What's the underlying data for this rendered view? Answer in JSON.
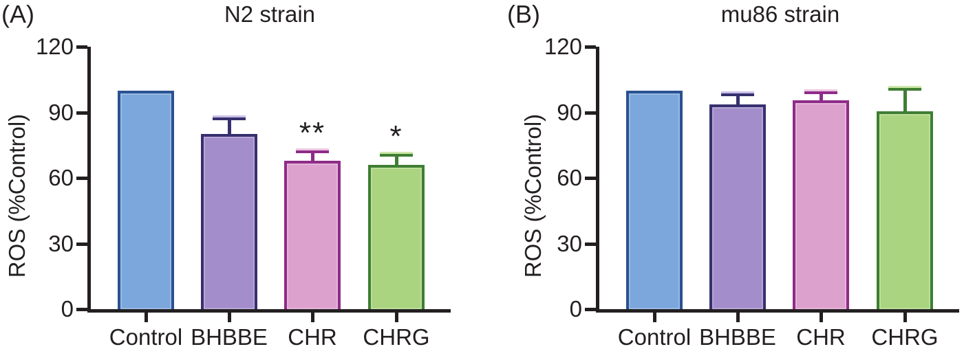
{
  "figure": {
    "background": "#ffffff",
    "text_color": "#231f20",
    "axis_color": "#231f20"
  },
  "chart_data": [
    {
      "type": "bar",
      "panel_label": "(A)",
      "title": "N2 strain",
      "ylabel": "ROS (%Control)",
      "xlabel": "",
      "categories": [
        "Control",
        "BHBBE",
        "CHR",
        "CHRG"
      ],
      "values": [
        100,
        80,
        68,
        66
      ],
      "errors_plus": [
        0,
        7.5,
        4.5,
        5
      ],
      "significance": [
        "",
        "",
        "**",
        "*"
      ],
      "ylim": [
        0,
        120
      ],
      "yticks": [
        0,
        30,
        60,
        90,
        120
      ],
      "grid": false,
      "legend": "none",
      "bar_styles": [
        {
          "name": "control-blue",
          "fill": "#7ba7dc",
          "border": "#2a5291",
          "cap_light": "#bcd2ee"
        },
        {
          "name": "bhbbe-purple",
          "fill": "#a38dcb",
          "border": "#37306f",
          "cap_light": "#c9bfe7"
        },
        {
          "name": "chr-pink",
          "fill": "#dda1cd",
          "border": "#8e2c88",
          "cap_light": "#edc7e2"
        },
        {
          "name": "chrg-green",
          "fill": "#aad47f",
          "border": "#3f7e33",
          "cap_light": "#cde7a9"
        }
      ]
    },
    {
      "type": "bar",
      "panel_label": "(B)",
      "title": "mu86 strain",
      "ylabel": "ROS (%Control)",
      "xlabel": "",
      "categories": [
        "Control",
        "BHBBE",
        "CHR",
        "CHRG"
      ],
      "values": [
        100,
        93.5,
        95.5,
        90.5
      ],
      "errors_plus": [
        0,
        5,
        4,
        10.5
      ],
      "significance": [
        "",
        "",
        "",
        ""
      ],
      "ylim": [
        0,
        120
      ],
      "yticks": [
        0,
        30,
        60,
        90,
        120
      ],
      "grid": false,
      "legend": "none",
      "bar_styles": [
        {
          "name": "control-blue",
          "fill": "#7ba7dc",
          "border": "#2a5291",
          "cap_light": "#bcd2ee"
        },
        {
          "name": "bhbbe-purple",
          "fill": "#a38dcb",
          "border": "#37306f",
          "cap_light": "#c9bfe7"
        },
        {
          "name": "chr-pink",
          "fill": "#dda1cd",
          "border": "#8e2c88",
          "cap_light": "#edc7e2"
        },
        {
          "name": "chrg-green",
          "fill": "#aad47f",
          "border": "#3f7e33",
          "cap_light": "#cde7a9"
        }
      ]
    }
  ]
}
